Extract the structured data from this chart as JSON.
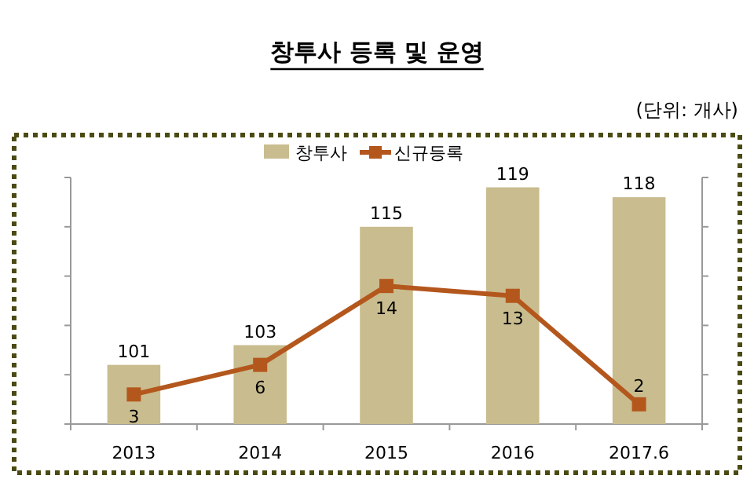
{
  "chart_data": {
    "type": "bar",
    "title": "창투사 등록 및 운영",
    "annotations": [
      "(단위: 개사)"
    ],
    "categories": [
      "2013",
      "2014",
      "2015",
      "2016",
      "2017.6"
    ],
    "series": [
      {
        "name": "창투사",
        "color": "#c9bc8e",
        "values": [
          101,
          103,
          115,
          119,
          118
        ]
      },
      {
        "name": "신규등록",
        "type": "line",
        "axis": "y2",
        "color": "#b4571d",
        "values": [
          3,
          6,
          14,
          13,
          2
        ]
      }
    ],
    "ylim": [
      95,
      120
    ],
    "yticks": [
      {
        "value": 95,
        "label": null
      },
      {
        "value": 100,
        "label": null
      },
      {
        "value": 105,
        "label": null
      },
      {
        "value": 110,
        "label": null
      },
      {
        "value": 115,
        "label": null
      },
      {
        "value": 120,
        "label": null
      }
    ],
    "y2lim": [
      0,
      25
    ],
    "y2ticks": [
      {
        "value": 0,
        "label": null
      },
      {
        "value": 5,
        "label": null
      },
      {
        "value": 10,
        "label": null
      },
      {
        "value": 15,
        "label": null
      },
      {
        "value": 20,
        "label": null
      },
      {
        "value": 25,
        "label": null
      }
    ],
    "data_labels": true,
    "legend": "top",
    "marker": "square",
    "tick_labels": "x"
  }
}
